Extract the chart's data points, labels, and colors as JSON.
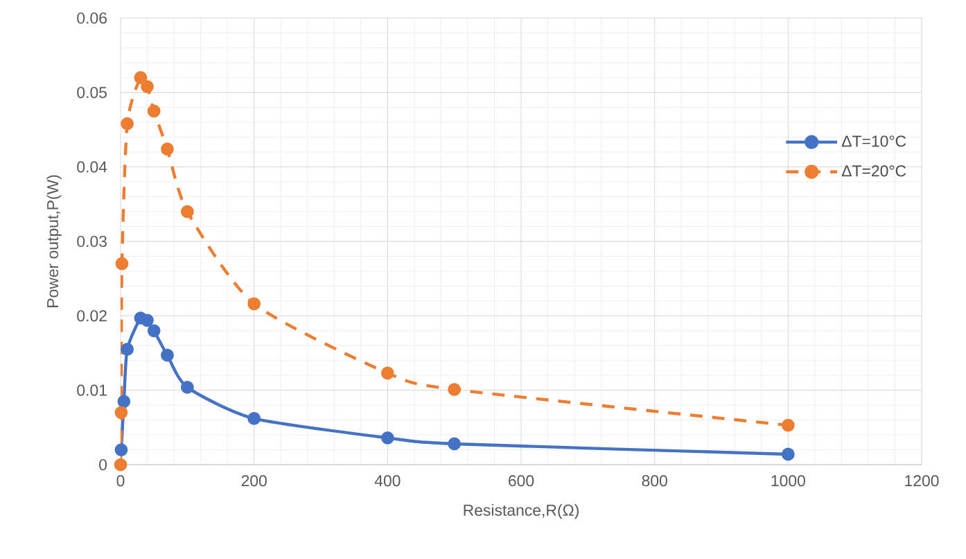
{
  "chart_data": {
    "type": "line",
    "xlabel": "Resistance,R(Ω)",
    "ylabel": "Power output,P(W)",
    "xlim": [
      0,
      1200
    ],
    "xticks": [
      0,
      200,
      400,
      600,
      800,
      1000,
      1200
    ],
    "ylim": [
      0,
      0.06
    ],
    "yticks": [
      0,
      0.01,
      0.02,
      0.03,
      0.04,
      0.05,
      0.06
    ],
    "grid": true,
    "legend": "top right",
    "marker": "circle",
    "series": [
      {
        "name": "ΔT=10°C",
        "color": "#4472c4",
        "line_style": "solid",
        "x": [
          1,
          5,
          10,
          30,
          40,
          50,
          70,
          100,
          200,
          400,
          500,
          1000
        ],
        "values": [
          0.002,
          0.0085,
          0.0155,
          0.0197,
          0.0194,
          0.018,
          0.0147,
          0.0104,
          0.0062,
          0.0036,
          0.0028,
          0.0014
        ]
      },
      {
        "name": "ΔT=20°C",
        "color": "#ed7d31",
        "line_style": "dashed",
        "x": [
          0,
          1,
          2,
          10,
          30,
          40,
          50,
          70,
          100,
          200,
          400,
          500,
          1000
        ],
        "values": [
          0,
          0.007,
          0.027,
          0.0458,
          0.052,
          0.0508,
          0.0475,
          0.0424,
          0.034,
          0.0216,
          0.0123,
          0.0101,
          0.0053
        ]
      }
    ]
  }
}
